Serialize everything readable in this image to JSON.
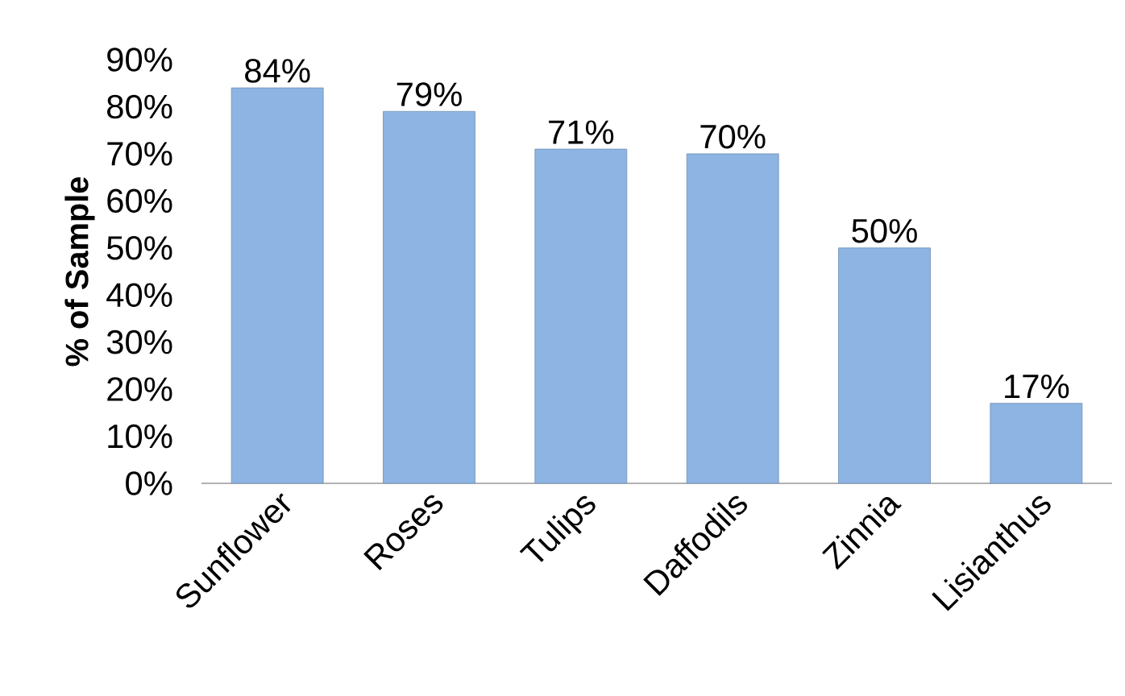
{
  "chart_data": {
    "type": "bar",
    "ylabel": "% of Sample",
    "categories": [
      "Sunflower",
      "Roses",
      "Tulips",
      "Daffodils",
      "Zinnia",
      "Lisianthus"
    ],
    "values": [
      84,
      79,
      71,
      70,
      50,
      17
    ],
    "value_labels": [
      "84%",
      "79%",
      "71%",
      "70%",
      "50%",
      "17%"
    ],
    "color": "#8db4e2",
    "ylim": [
      0,
      90
    ],
    "yticks": [
      {
        "value": 0,
        "label": "0%"
      },
      {
        "value": 10,
        "label": "10%"
      },
      {
        "value": 20,
        "label": "20%"
      },
      {
        "value": 30,
        "label": "30%"
      },
      {
        "value": 40,
        "label": "40%"
      },
      {
        "value": 50,
        "label": "50%"
      },
      {
        "value": 60,
        "label": "60%"
      },
      {
        "value": 70,
        "label": "70%"
      },
      {
        "value": 80,
        "label": "80%"
      },
      {
        "value": 90,
        "label": "90%"
      }
    ],
    "grid": false
  }
}
